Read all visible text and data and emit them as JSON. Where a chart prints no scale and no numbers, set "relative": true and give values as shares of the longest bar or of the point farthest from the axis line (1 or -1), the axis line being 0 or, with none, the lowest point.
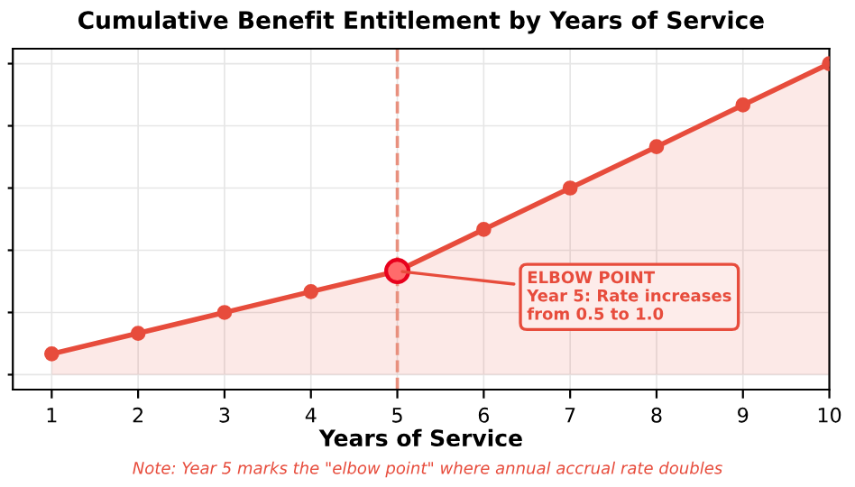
{
  "chart_data": {
    "type": "area",
    "title": "Cumulative Benefit Entitlement by Years of Service",
    "xlabel": "Years of Service",
    "x": [
      1,
      2,
      3,
      4,
      5,
      6,
      7,
      8,
      9,
      10
    ],
    "relative": true,
    "series": [
      {
        "color": "#e74c3c",
        "values": [
          0.067,
          0.133,
          0.2,
          0.267,
          0.333,
          0.467,
          0.6,
          0.733,
          0.867,
          1.0
        ]
      },
      {
        "type": "scatter",
        "color": "#ff6b6b",
        "x": [
          5
        ],
        "values": [
          0.333
        ]
      }
    ],
    "xlim": [
      0.55,
      10
    ],
    "xticks": [
      1,
      2,
      3,
      4,
      5,
      6,
      7,
      8,
      9,
      10
    ],
    "ref_lines": [
      {
        "axis": "x",
        "value": 5,
        "label": null,
        "color": "#e8907e",
        "line_style": "dashed"
      }
    ],
    "annotations": [
      {
        "text": "ELBOW POINT\nYear 5: Rate increases\nfrom 0.5 to 1.0",
        "x": 5,
        "y": 0.333
      },
      "Note: Year 5 marks the \"elbow point\" where annual accrual rate doubles"
    ],
    "grid": true,
    "marker": "circle",
    "line_style": "solid",
    "tick_labels": "x"
  }
}
